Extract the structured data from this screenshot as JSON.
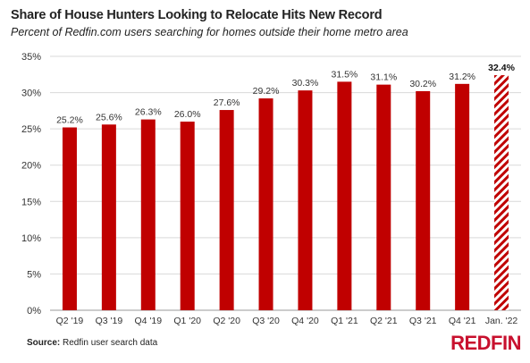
{
  "chart_data": {
    "type": "bar",
    "title": "Share of House Hunters Looking to Relocate Hits New Record",
    "subtitle": "Percent of Redfin.com users searching for homes outside their home metro area",
    "categories": [
      "Q2 '19",
      "Q3 '19",
      "Q4 '19",
      "Q1 '20",
      "Q2 '20",
      "Q3 '20",
      "Q4 '20",
      "Q1 '21",
      "Q2 '21",
      "Q3 '21",
      "Q4 '21",
      "Jan. '22"
    ],
    "values": [
      25.2,
      25.6,
      26.3,
      26.0,
      27.6,
      29.2,
      30.3,
      31.5,
      31.1,
      30.2,
      31.2,
      32.4
    ],
    "value_labels": [
      "25.2%",
      "25.6%",
      "26.3%",
      "26.0%",
      "27.6%",
      "29.2%",
      "30.3%",
      "31.5%",
      "31.1%",
      "30.2%",
      "31.2%",
      "32.4%"
    ],
    "highlight_index": 11,
    "highlight_style": "hatched",
    "ylim": [
      0,
      35
    ],
    "yticks": [
      0,
      5,
      10,
      15,
      20,
      25,
      30,
      35
    ],
    "ytick_labels": [
      "0%",
      "5%",
      "10%",
      "15%",
      "20%",
      "25%",
      "30%",
      "35%"
    ],
    "xlabel": "",
    "ylabel": "",
    "grid": true,
    "bar_color": "#c00000",
    "grid_color": "#d9d9d9"
  },
  "source": {
    "label": "Source:",
    "text": " Redfin user search data"
  },
  "logo": {
    "text": "REDFIN",
    "color": "#c8102e"
  }
}
